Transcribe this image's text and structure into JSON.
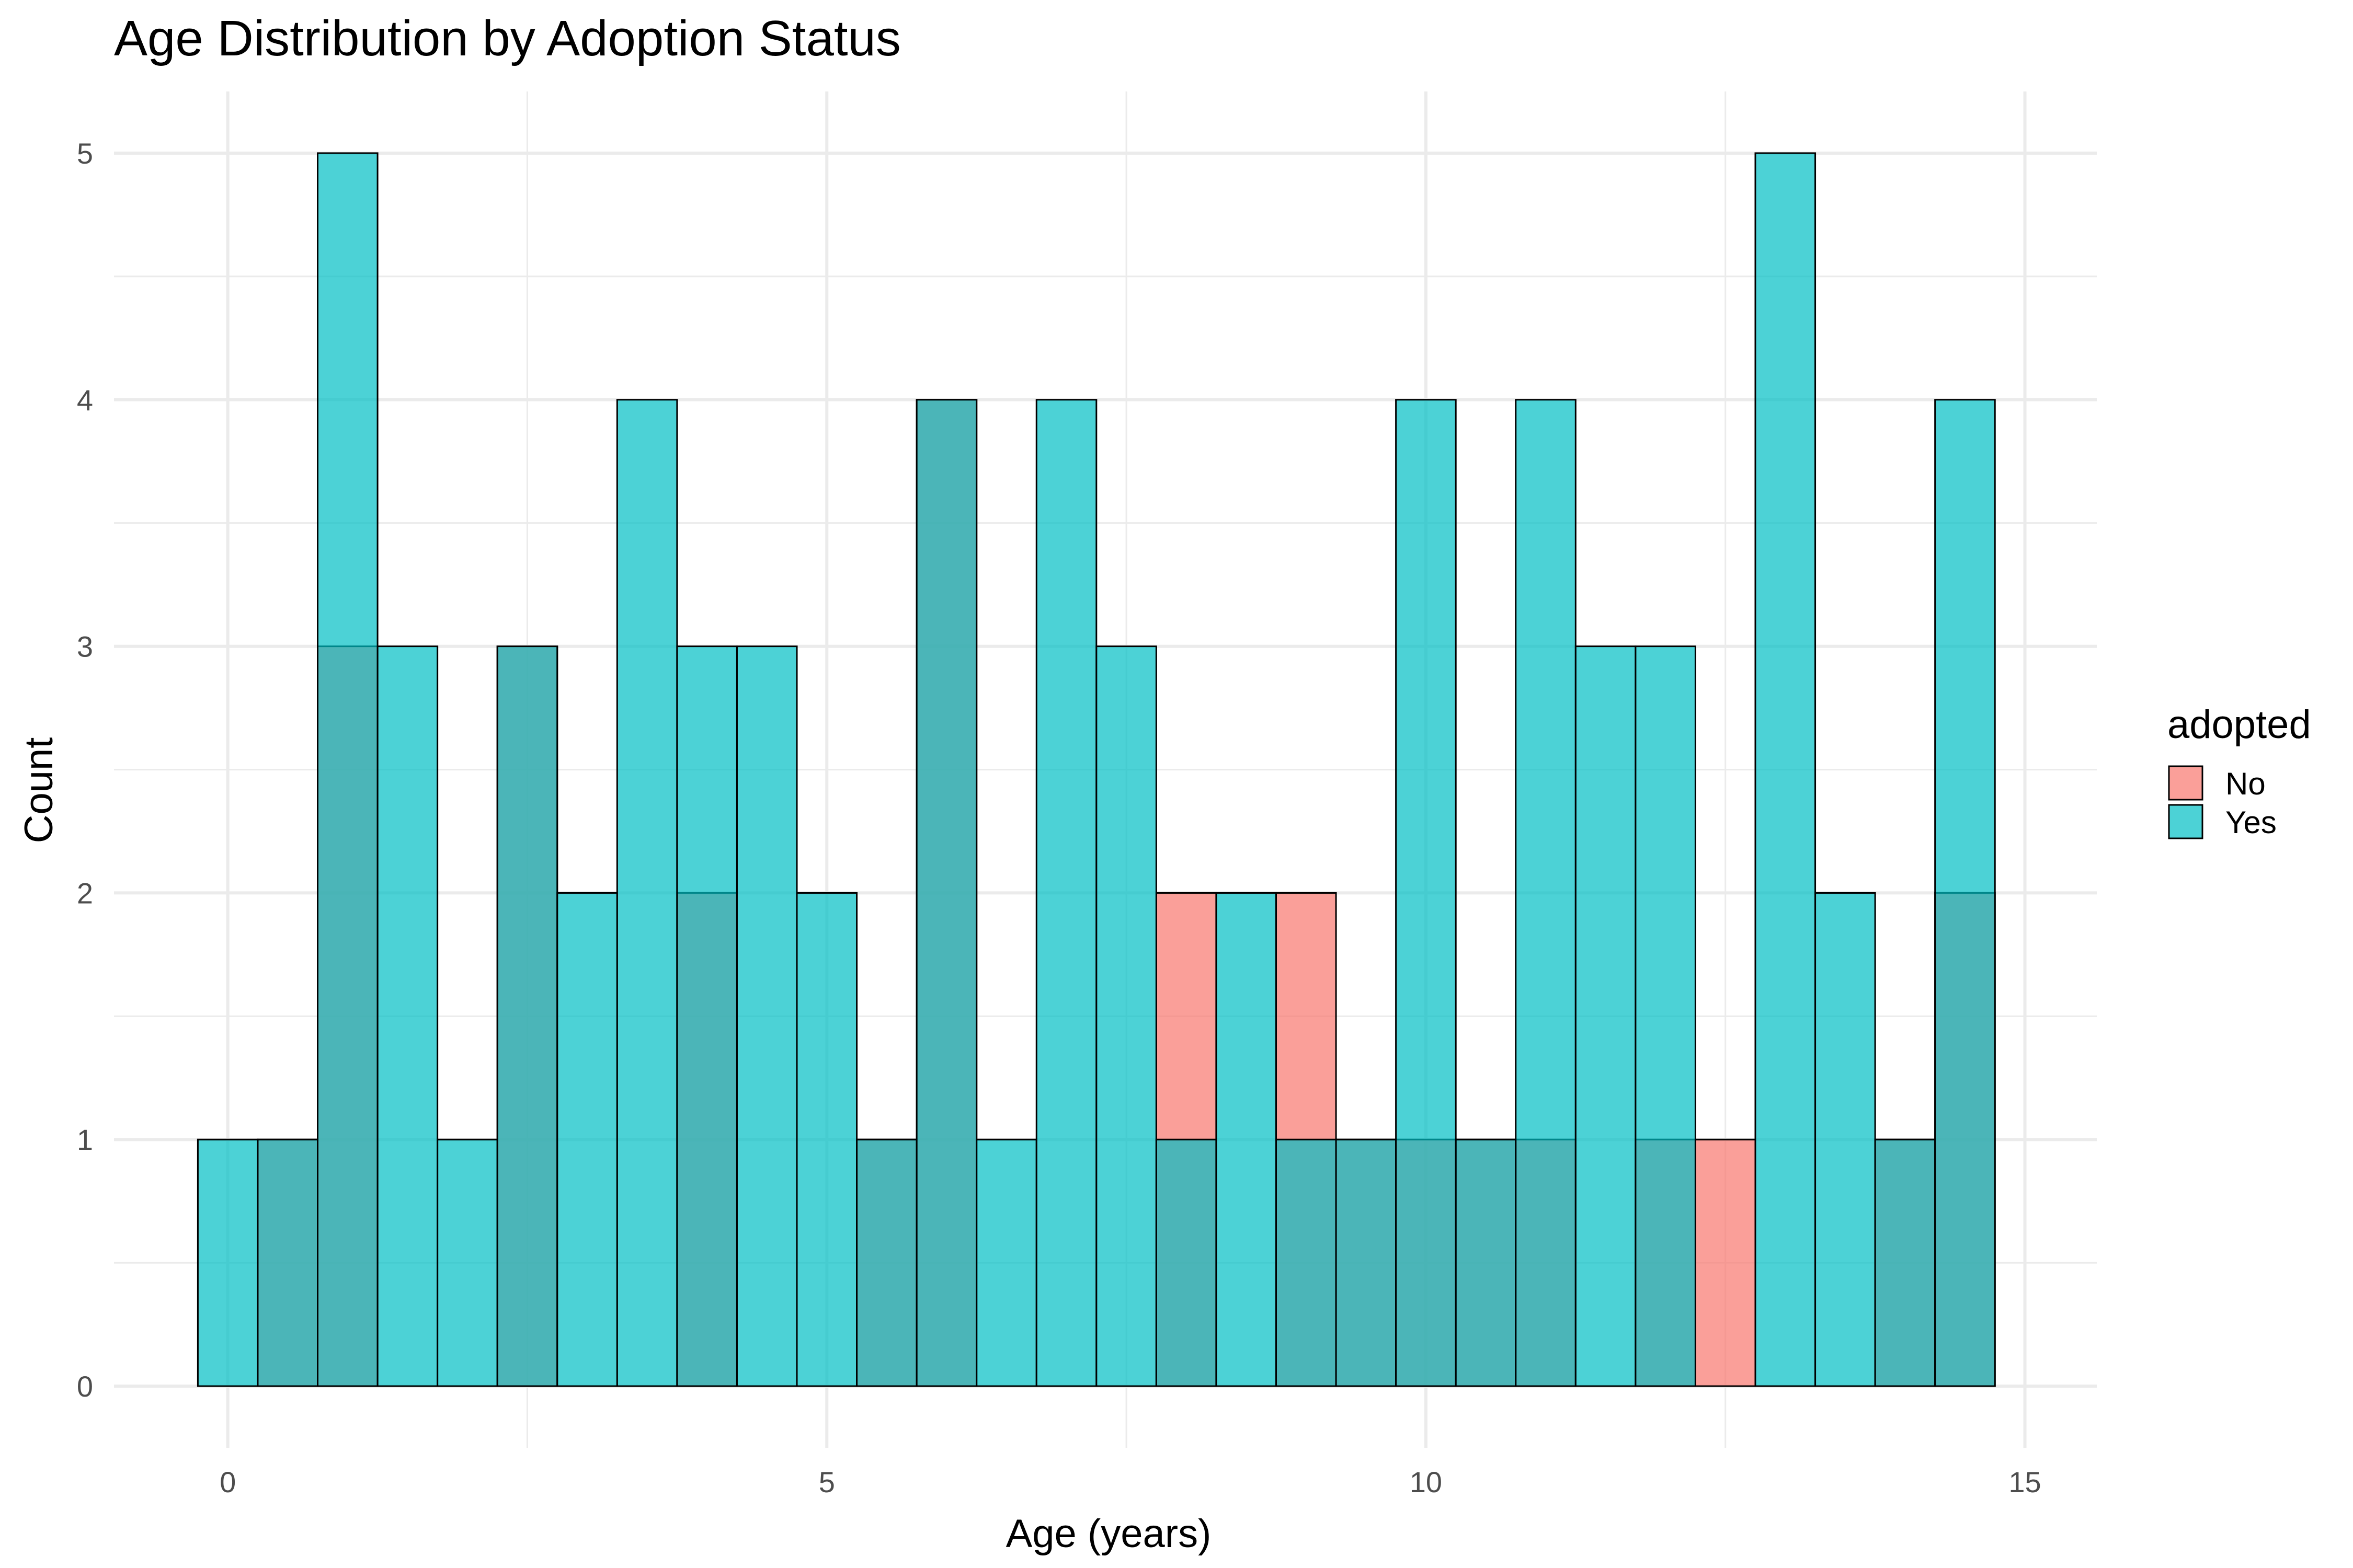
{
  "chart_data": {
    "type": "bar",
    "subtype": "overlapping histogram",
    "title": "Age Distribution by Adoption Status",
    "xlabel": "Age (years)",
    "ylabel": "Count",
    "xlim": [
      -0.95,
      15.6
    ],
    "ylim": [
      -0.25,
      5.25
    ],
    "x_ticks": [
      0,
      5,
      10,
      15
    ],
    "y_ticks": [
      0,
      1,
      2,
      3,
      4,
      5
    ],
    "grid": true,
    "legend": {
      "title": "adopted",
      "position": "right"
    },
    "bin_width": 0.5,
    "bin_centers": [
      0,
      0.5,
      1,
      1.5,
      2,
      2.5,
      3,
      3.5,
      4,
      4.5,
      5,
      5.5,
      6,
      6.5,
      7,
      7.5,
      8,
      8.5,
      9,
      9.5,
      10,
      10.5,
      11,
      11.5,
      12,
      12.5,
      13,
      13.5,
      14,
      14.5
    ],
    "series": [
      {
        "name": "No",
        "color": "#F8766D",
        "values": [
          0,
          1,
          3,
          0,
          0,
          3,
          0,
          0,
          2,
          0,
          0,
          1,
          4,
          0,
          0,
          0,
          2,
          0,
          2,
          1,
          1,
          1,
          1,
          0,
          1,
          1,
          0,
          0,
          1,
          2
        ]
      },
      {
        "name": "Yes",
        "color": "#00BFC4",
        "values": [
          1,
          1,
          5,
          3,
          1,
          3,
          2,
          4,
          3,
          3,
          2,
          1,
          4,
          1,
          4,
          3,
          1,
          2,
          1,
          1,
          4,
          1,
          4,
          3,
          3,
          0,
          5,
          2,
          1,
          4
        ]
      }
    ]
  }
}
